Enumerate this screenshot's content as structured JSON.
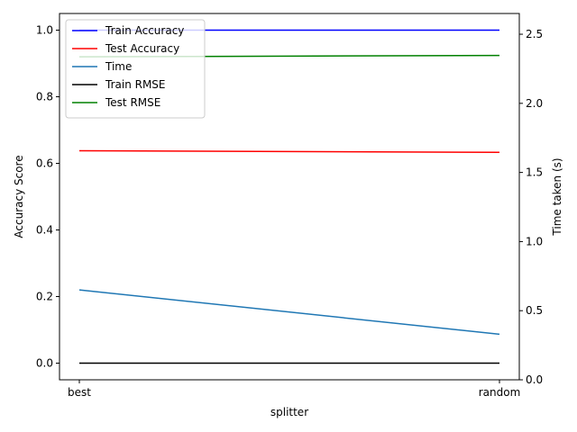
{
  "chart_data": {
    "type": "line",
    "categories": [
      "best",
      "random"
    ],
    "xlabel": "splitter",
    "ylabel": "Accuracy Score",
    "ylabel_right": "Time taken (s)",
    "ylim": [
      -0.05,
      1.05
    ],
    "ylim_right": [
      0.0,
      2.65
    ],
    "yticks": [
      0.0,
      0.2,
      0.4,
      0.6,
      0.8,
      1.0
    ],
    "yticks_right": [
      0.0,
      0.5,
      1.0,
      1.5,
      2.0,
      2.5
    ],
    "legend_position": "top-left",
    "series": [
      {
        "name": "Train Accuracy",
        "axis": "left",
        "color": "#0000ff",
        "values": [
          1.0,
          1.0
        ]
      },
      {
        "name": "Test Accuracy",
        "axis": "left",
        "color": "#ff0000",
        "values": [
          0.638,
          0.633
        ]
      },
      {
        "name": "Time",
        "axis": "right",
        "color": "#1f77b4",
        "values": [
          0.65,
          0.33
        ]
      },
      {
        "name": "Train RMSE",
        "axis": "left",
        "color": "#000000",
        "values": [
          0.0,
          0.0
        ]
      },
      {
        "name": "Test RMSE",
        "axis": "left",
        "color": "#008000",
        "values": [
          0.92,
          0.924
        ]
      }
    ]
  }
}
